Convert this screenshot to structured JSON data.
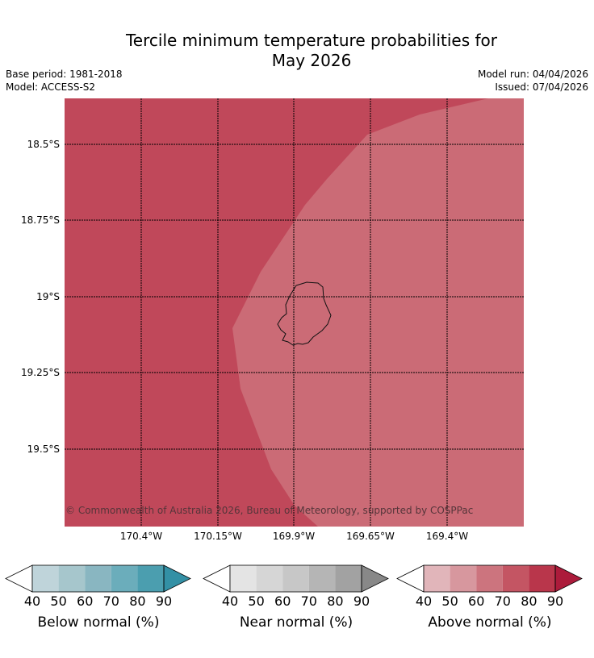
{
  "title_line1": "Tercile minimum temperature probabilities for",
  "title_line2": "May 2026",
  "base_period": "Base period: 1981-2018",
  "model": "Model: ACCESS-S2",
  "model_run": "Model run: 04/04/2026",
  "issued": "Issued: 07/04/2026",
  "copyright": "© Commonwealth of Australia 2026, Bureau of Meteorology, supported by COSPPac",
  "lat_labels": [
    "18.5°S",
    "18.75°S",
    "19°S",
    "19.25°S",
    "19.5°S"
  ],
  "lon_labels": [
    "170.4°W",
    "170.15°W",
    "169.9°W",
    "169.65°W",
    "169.4°W"
  ],
  "map_colors": {
    "above_60_70": "#c0485a",
    "above_50_60": "#cb6b76"
  },
  "colorbars": [
    {
      "label": "Below normal (%)",
      "ticks": [
        "40",
        "50",
        "60",
        "70",
        "80",
        "90"
      ],
      "colors": [
        "#bfd4da",
        "#a6c6cc",
        "#89b6c1",
        "#6badbb",
        "#4b9eaf"
      ],
      "extend_color": "#3390a5"
    },
    {
      "label": "Near normal (%)",
      "ticks": [
        "40",
        "50",
        "60",
        "70",
        "80",
        "90"
      ],
      "colors": [
        "#e4e4e4",
        "#d6d6d6",
        "#c7c7c7",
        "#b5b5b5",
        "#a2a2a2"
      ],
      "extend_color": "#888888"
    },
    {
      "label": "Above normal (%)",
      "ticks": [
        "40",
        "50",
        "60",
        "70",
        "80",
        "90"
      ],
      "colors": [
        "#e1b5ba",
        "#d7979e",
        "#cc747e",
        "#c45563",
        "#b9364b"
      ],
      "extend_color": "#ac1b3b"
    }
  ]
}
